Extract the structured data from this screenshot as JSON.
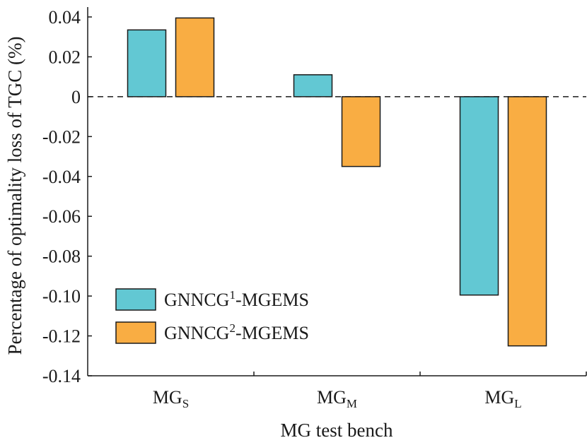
{
  "chart_data": {
    "type": "bar",
    "title": "",
    "xlabel": "MG test bench",
    "ylabel": "Percentage of optimality loss of TGC (%)",
    "ylim": [
      -0.14,
      0.04
    ],
    "yticks": [
      0.04,
      0.02,
      0,
      -0.02,
      -0.04,
      -0.06,
      -0.08,
      -0.1,
      -0.12,
      -0.14
    ],
    "ytick_labels": [
      "0.04",
      "0.02",
      "0",
      "-0.02",
      "-0.04",
      "-0.06",
      "-0.08",
      "-0.10",
      "-0.12",
      "-0.14"
    ],
    "categories": [
      {
        "base": "MG",
        "sub": "S"
      },
      {
        "base": "MG",
        "sub": "M"
      },
      {
        "base": "MG",
        "sub": "L"
      }
    ],
    "series": [
      {
        "name": {
          "base": "GNNCG",
          "sup": "1",
          "rest": "-MGEMS"
        },
        "color": "#62c8d3",
        "values": [
          0.0335,
          0.011,
          -0.0995
        ]
      },
      {
        "name": {
          "base": "GNNCG",
          "sup": "2",
          "rest": "-MGEMS"
        },
        "color": "#f9ad43",
        "values": [
          0.0395,
          -0.035,
          -0.125
        ]
      }
    ],
    "zero_line": "dashed",
    "grid": false,
    "legend_position": "bottom-left"
  }
}
